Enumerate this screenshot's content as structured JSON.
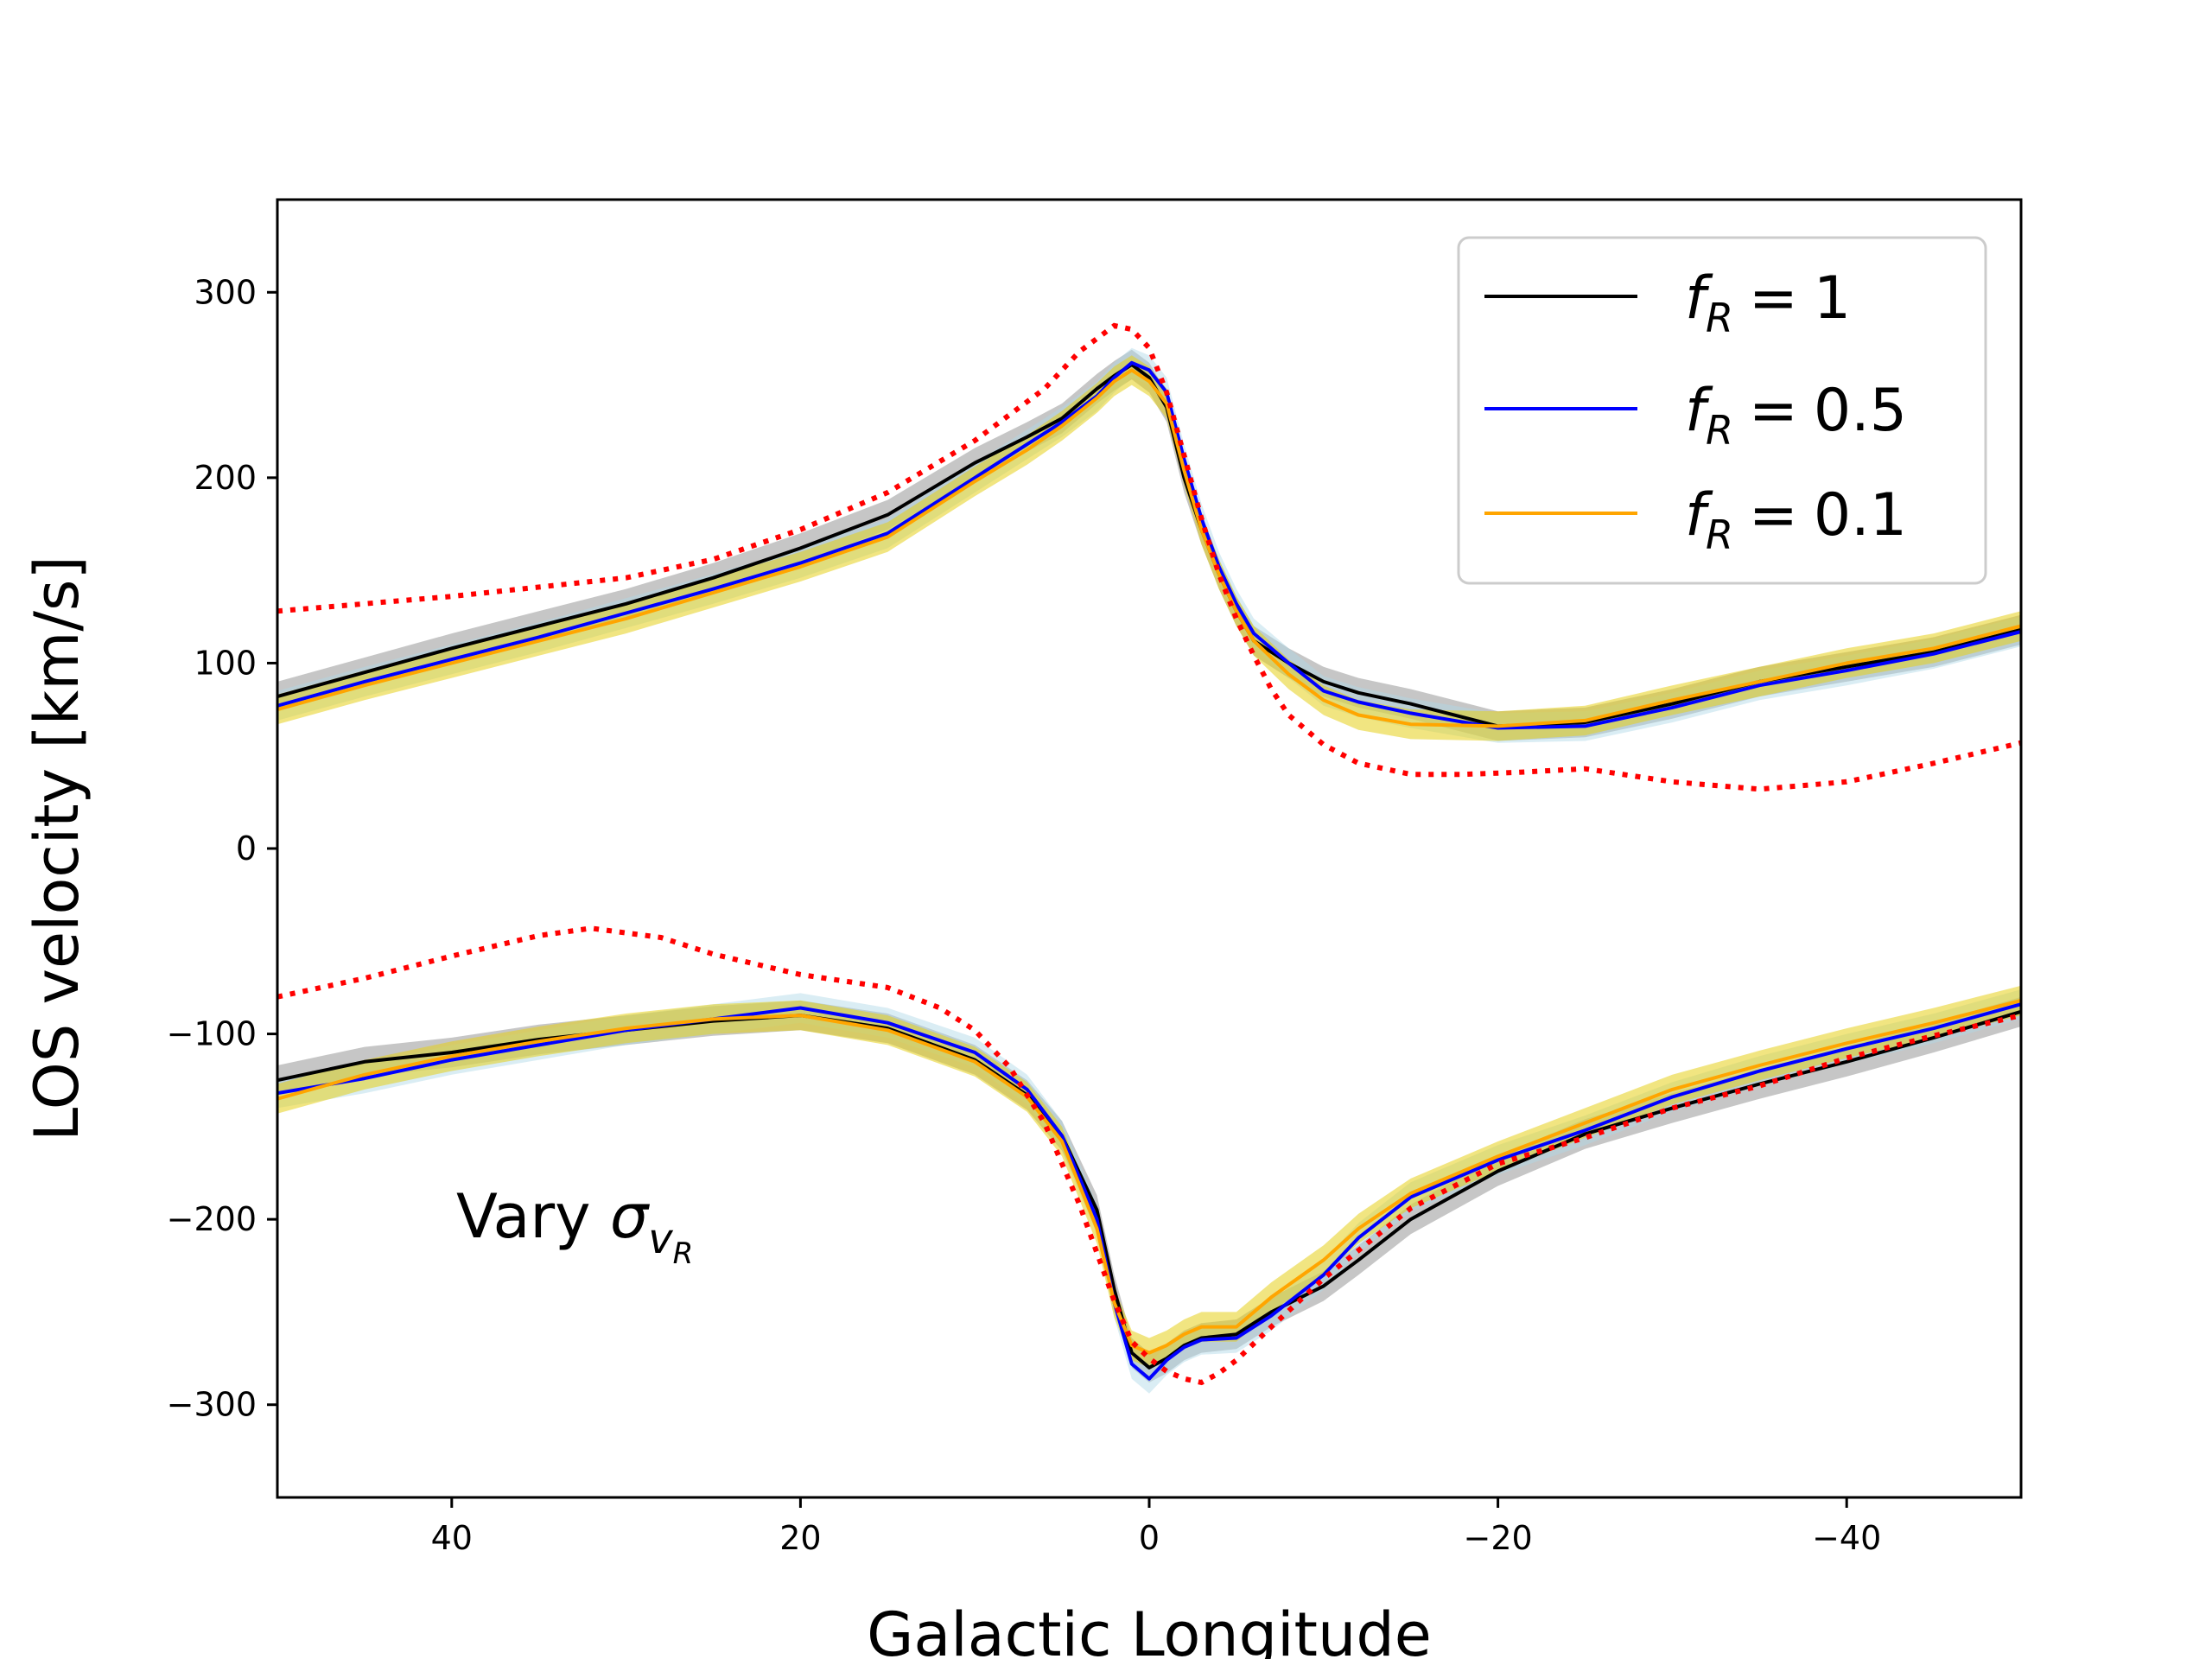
{
  "chart_data": {
    "type": "line",
    "title": "",
    "xlabel": "Galactic Longitude",
    "ylabel": "LOS velocity [km/s]",
    "xlim": [
      50,
      -50
    ],
    "ylim": [
      -350,
      350
    ],
    "xticks": [
      40,
      20,
      0,
      -20,
      -40
    ],
    "xtick_labels": [
      "40",
      "20",
      "0",
      "−20",
      "−40"
    ],
    "yticks": [
      300,
      200,
      100,
      0,
      -100,
      -200,
      -300
    ],
    "ytick_labels": [
      "300",
      "200",
      "100",
      "0",
      "−100",
      "−200",
      "−300"
    ],
    "legend_position": "top-right",
    "annotation": {
      "prefix": "Vary ",
      "symbol": "σ",
      "sub": "v",
      "subsub": "R"
    },
    "colors": {
      "f1": "#000000",
      "f05": "#0000ff",
      "f01": "#ffa500",
      "band_f1": "#808080",
      "band_f05": "#add8e6",
      "band_f01": "#e6cf1a",
      "reference": "#ff0000"
    },
    "band_halfwidth": 8,
    "series": [
      {
        "name": "f_R = 1",
        "legend": {
          "var": "f",
          "sub": "R",
          "eq": "=",
          "num": "1"
        },
        "color_key": "f1",
        "band_key": "band_f1",
        "upper": {
          "x": [
            50,
            45,
            40,
            35,
            30,
            25,
            20,
            15,
            10,
            7,
            5,
            3,
            2,
            1,
            0,
            -1,
            -2,
            -3,
            -4,
            -5,
            -6,
            -8,
            -10,
            -12,
            -15,
            -20,
            -25,
            -30,
            -35,
            -40,
            -45,
            -50
          ],
          "y": [
            82,
            95,
            108,
            120,
            132,
            146,
            162,
            180,
            208,
            222,
            232,
            248,
            255,
            261,
            254,
            238,
            200,
            172,
            148,
            128,
            112,
            100,
            90,
            84,
            78,
            66,
            68,
            78,
            90,
            98,
            106,
            118
          ]
        },
        "lower": {
          "x": [
            50,
            45,
            40,
            35,
            30,
            25,
            20,
            15,
            10,
            7,
            5,
            3,
            2,
            1,
            0,
            -1,
            -2,
            -3,
            -5,
            -7,
            -10,
            -12,
            -15,
            -20,
            -25,
            -30,
            -35,
            -40,
            -45,
            -50
          ],
          "y": [
            -125,
            -115,
            -110,
            -103,
            -98,
            -93,
            -90,
            -97,
            -114,
            -133,
            -155,
            -195,
            -238,
            -272,
            -280,
            -275,
            -268,
            -264,
            -262,
            -250,
            -236,
            -222,
            -200,
            -174,
            -154,
            -140,
            -127,
            -115,
            -102,
            -88
          ]
        }
      },
      {
        "name": "f_R = 0.5",
        "legend": {
          "var": "f",
          "sub": "R",
          "eq": "=",
          "num": "0.5"
        },
        "color_key": "f05",
        "band_key": "band_f05",
        "upper": {
          "x": [
            50,
            45,
            40,
            35,
            30,
            25,
            20,
            15,
            10,
            7,
            5,
            3,
            2,
            1,
            0,
            -1,
            -2,
            -3,
            -4,
            -5,
            -6,
            -8,
            -10,
            -12,
            -15,
            -20,
            -25,
            -30,
            -35,
            -40,
            -45,
            -50
          ],
          "y": [
            77,
            90,
            102,
            114,
            127,
            140,
            154,
            170,
            200,
            218,
            230,
            244,
            254,
            262,
            258,
            246,
            210,
            178,
            152,
            132,
            116,
            100,
            85,
            79,
            73,
            65,
            66,
            76,
            88,
            96,
            105,
            117
          ]
        },
        "lower": {
          "x": [
            50,
            45,
            40,
            35,
            30,
            25,
            20,
            15,
            10,
            7,
            5,
            3,
            2,
            1,
            0,
            -1,
            -2,
            -3,
            -5,
            -7,
            -10,
            -12,
            -15,
            -20,
            -25,
            -30,
            -35,
            -40,
            -45,
            -50
          ],
          "y": [
            -132,
            -124,
            -114,
            -106,
            -98,
            -92,
            -86,
            -94,
            -110,
            -130,
            -155,
            -200,
            -245,
            -278,
            -286,
            -276,
            -269,
            -265,
            -264,
            -252,
            -230,
            -210,
            -188,
            -168,
            -152,
            -134,
            -120,
            -108,
            -97,
            -84
          ]
        }
      },
      {
        "name": "f_R = 0.1",
        "legend": {
          "var": "f",
          "sub": "R",
          "eq": "=",
          "num": "0.1"
        },
        "color_key": "f01",
        "band_key": "band_f01",
        "upper": {
          "x": [
            50,
            45,
            40,
            35,
            30,
            25,
            20,
            15,
            10,
            7,
            5,
            3,
            2,
            1,
            0,
            -1,
            -2,
            -3,
            -4,
            -5,
            -6,
            -8,
            -10,
            -12,
            -15,
            -20,
            -25,
            -30,
            -35,
            -40,
            -45,
            -50
          ],
          "y": [
            75,
            88,
            100,
            112,
            124,
            138,
            152,
            168,
            198,
            215,
            228,
            243,
            252,
            258,
            252,
            240,
            204,
            172,
            148,
            128,
            112,
            94,
            80,
            72,
            67,
            66,
            69,
            80,
            90,
            100,
            108,
            120
          ]
        },
        "lower": {
          "x": [
            50,
            45,
            40,
            35,
            30,
            25,
            20,
            15,
            10,
            7,
            5,
            3,
            2,
            1,
            0,
            -1,
            -2,
            -3,
            -5,
            -7,
            -10,
            -12,
            -15,
            -20,
            -25,
            -30,
            -35,
            -40,
            -45,
            -50
          ],
          "y": [
            -135,
            -122,
            -112,
            -104,
            -97,
            -92,
            -90,
            -98,
            -115,
            -134,
            -158,
            -205,
            -245,
            -268,
            -272,
            -268,
            -262,
            -258,
            -258,
            -242,
            -222,
            -205,
            -186,
            -166,
            -148,
            -130,
            -117,
            -105,
            -94,
            -82
          ]
        }
      }
    ],
    "reference": {
      "name": "reference (dotted)",
      "color_key": "reference",
      "upper": {
        "x": [
          50,
          40,
          30,
          25,
          20,
          15,
          10,
          6,
          4,
          2,
          1,
          0,
          -1,
          -2,
          -3,
          -4,
          -5,
          -6,
          -7,
          -8,
          -10,
          -12,
          -15,
          -18,
          -21,
          -25,
          -30,
          -35,
          -40,
          -45,
          -50
        ],
        "y": [
          128,
          136,
          146,
          156,
          172,
          192,
          220,
          248,
          268,
          282,
          280,
          270,
          246,
          212,
          178,
          148,
          124,
          104,
          86,
          72,
          56,
          46,
          40,
          40,
          41,
          43,
          36,
          32,
          36,
          46,
          57
        ]
      },
      "lower": {
        "x": [
          50,
          45,
          40,
          35,
          32,
          28,
          25,
          20,
          15,
          12,
          10,
          8,
          6,
          4,
          2,
          1,
          0,
          -1,
          -2,
          -3,
          -4,
          -5,
          -7,
          -10,
          -15,
          -20,
          -25,
          -30,
          -35,
          -40,
          -45,
          -50
        ],
        "y": [
          -80,
          -70,
          -58,
          -47,
          -43,
          -48,
          -57,
          -68,
          -75,
          -86,
          -98,
          -118,
          -148,
          -192,
          -244,
          -266,
          -275,
          -282,
          -286,
          -288,
          -283,
          -276,
          -258,
          -232,
          -194,
          -170,
          -156,
          -140,
          -128,
          -113,
          -101,
          -90
        ]
      }
    }
  }
}
